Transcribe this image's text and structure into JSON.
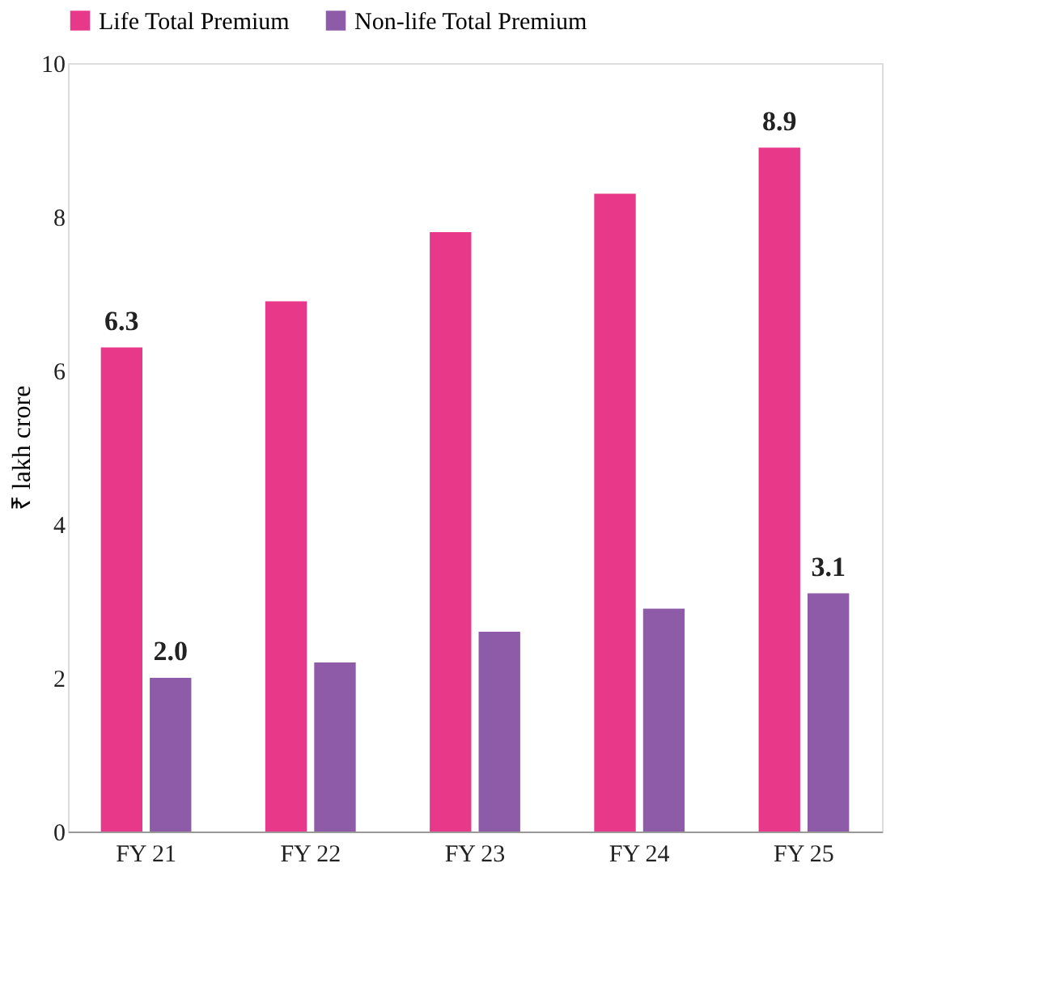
{
  "chart_data": {
    "type": "bar",
    "ylabel": "₹ lakh crore",
    "categories": [
      "FY 21",
      "FY 22",
      "FY 23",
      "FY 24",
      "FY 25"
    ],
    "series": [
      {
        "name": "Life Total Premium",
        "color": "#e8388a",
        "values": [
          6.3,
          6.9,
          7.8,
          8.3,
          8.9
        ],
        "value_labels": [
          "6.3",
          null,
          null,
          null,
          "8.9"
        ]
      },
      {
        "name": "Non-life Total Premium",
        "color": "#8e5ba8",
        "values": [
          2.0,
          2.2,
          2.6,
          2.9,
          3.1
        ],
        "value_labels": [
          "2.0",
          null,
          null,
          null,
          "3.1"
        ]
      }
    ],
    "ylim": [
      0,
      10
    ],
    "yticks": [
      0,
      2,
      4,
      6,
      8,
      10
    ],
    "grid": false,
    "legend": "top"
  }
}
